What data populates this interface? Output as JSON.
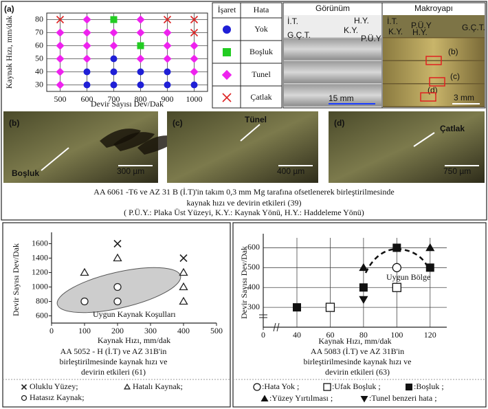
{
  "chart_data": [
    {
      "type": "scatter",
      "panel": "(a)",
      "xlabel": "Devir Sayısı Dev/Dak",
      "ylabel": "Kaynak Hızı, mm/dak",
      "xlim": [
        450,
        1050
      ],
      "xticks": [
        500,
        600,
        700,
        800,
        900,
        1000
      ],
      "ylim": [
        25,
        85
      ],
      "yticks": [
        30,
        40,
        50,
        60,
        70,
        80
      ],
      "grid": true,
      "legend_headers": [
        "İşaret",
        "Hata"
      ],
      "series": [
        {
          "name": "Yok",
          "color": "#1f1fd6",
          "marker": "circle",
          "x": [
            700,
            600,
            700,
            800,
            900,
            600,
            700,
            800,
            900,
            1000
          ],
          "y": [
            50,
            40,
            40,
            40,
            40,
            30,
            30,
            30,
            30,
            30
          ]
        },
        {
          "name": "Boşluk",
          "color": "#22cc22",
          "marker": "square",
          "x": [
            700,
            800
          ],
          "y": [
            80,
            60
          ]
        },
        {
          "name": "Tunel",
          "color": "#ee22ee",
          "marker": "diamond",
          "x": [
            600,
            800,
            500,
            600,
            700,
            800,
            900,
            500,
            600,
            700,
            900,
            1000,
            500,
            600,
            800,
            900,
            1000,
            500,
            1000,
            500
          ],
          "y": [
            80,
            80,
            70,
            70,
            70,
            70,
            70,
            60,
            60,
            60,
            60,
            60,
            50,
            50,
            50,
            50,
            50,
            40,
            40,
            30
          ]
        },
        {
          "name": "Çatlak",
          "color": "#dd2222",
          "marker": "x",
          "x": [
            500,
            900,
            1000,
            1000
          ],
          "y": [
            80,
            80,
            80,
            70
          ]
        }
      ]
    },
    {
      "type": "scatter",
      "xlabel": "Kaynak Hızı, mm/dak",
      "ylabel": "Devir Sayısı Dev/Dak",
      "xlim": [
        0,
        500
      ],
      "xticks": [
        0,
        100,
        200,
        300,
        400,
        500
      ],
      "ylim": [
        500,
        1700
      ],
      "yticks": [
        600,
        800,
        1000,
        1200,
        1400,
        1600
      ],
      "grid": false,
      "annotation": "Uygun Kaynak Koşulları",
      "caption": [
        "AA 5052 - H (İ.T) ve  AZ 31B'in",
        "birleştirilmesinde kaynak hızı ve",
        "devirin etkileri  (61)"
      ],
      "series": [
        {
          "name": "Oluklu Yüzey;",
          "color": "#222222",
          "marker": "x",
          "x": [
            200,
            400
          ],
          "y": [
            1600,
            1400
          ]
        },
        {
          "name": "Hatalı Kaynak;",
          "color": "#222222",
          "marker": "triangle-open",
          "x": [
            100,
            200,
            400,
            400,
            400
          ],
          "y": [
            1200,
            1400,
            1200,
            1000,
            800
          ]
        },
        {
          "name": "Hatasız Kaynak;",
          "color": "#222222",
          "marker": "circle-open",
          "x": [
            100,
            200,
            200
          ],
          "y": [
            800,
            1000,
            800
          ]
        }
      ]
    },
    {
      "type": "scatter",
      "xlabel": "Kaynak Hızı, mm/dak",
      "ylabel": "Devir Sayısı Dev/Dak",
      "xlim": [
        0,
        130
      ],
      "xticks": [
        0,
        40,
        60,
        80,
        100,
        120
      ],
      "x_axis_break": true,
      "ylim": [
        200,
        650
      ],
      "yticks": [
        300,
        400,
        500,
        600
      ],
      "grid": true,
      "annotation": "Uygun Bölge",
      "caption": [
        "AA 5083 (İ.T) ve  AZ 31B'in",
        "birleştirilmesinde kaynak hızı ve",
        "devirin etkileri  (63)"
      ],
      "series": [
        {
          "name": ":Hata Yok ;",
          "color": "#111111",
          "marker": "circle-open",
          "x": [
            100
          ],
          "y": [
            500
          ]
        },
        {
          "name": ":Ufak Boşluk ;",
          "color": "#111111",
          "marker": "square-open",
          "x": [
            60,
            100
          ],
          "y": [
            300,
            400
          ]
        },
        {
          "name": ":Boşluk ;",
          "color": "#111111",
          "marker": "square",
          "x": [
            40,
            80,
            100,
            120
          ],
          "y": [
            300,
            400,
            600,
            500
          ]
        },
        {
          "name": ":Yüzey Yırtılması ;",
          "color": "#111111",
          "marker": "triangle",
          "x": [
            80,
            120
          ],
          "y": [
            500,
            600
          ]
        },
        {
          "name": ":Tunel benzeri hata ;",
          "color": "#111111",
          "marker": "triangle-down",
          "x": [
            80
          ],
          "y": [
            340
          ]
        }
      ]
    }
  ],
  "photo_panel": {
    "headers": [
      "Görünüm",
      "Makroyapı"
    ],
    "labels": [
      "İ.T.",
      "G.Ç.T.",
      "H.Y.",
      "K.Y.",
      "P.Ü.Y",
      "İ.T.",
      "P.Ü.Y",
      "K.Y.",
      "H.Y.",
      "G.Ç.T.",
      "(b)",
      "(c)",
      "(d)"
    ],
    "scales": [
      "15 mm",
      "3 mm"
    ]
  },
  "micrographs": [
    {
      "label": "(b)",
      "defect": "Boşluk",
      "scale": "300 µm"
    },
    {
      "label": "(c)",
      "defect": "Tünel",
      "scale": "400 µm"
    },
    {
      "label": "(d)",
      "defect": "Çatlak",
      "scale": "750 µm"
    }
  ],
  "caption": {
    "lines": [
      "AA 6061 -T6 ve AZ 31 B (İ.T)'in  takım 0,3 mm Mg tarafına ofsetlenerek birleştirilmesinde",
      "kaynak hızı ve devirin etkileri (39)"
    ],
    "note": "( P.Ü.Y.: Plaka Üst Yüzeyi, K.Y.: Kaynak Yönü, H.Y.: Haddeleme Yönü)"
  }
}
